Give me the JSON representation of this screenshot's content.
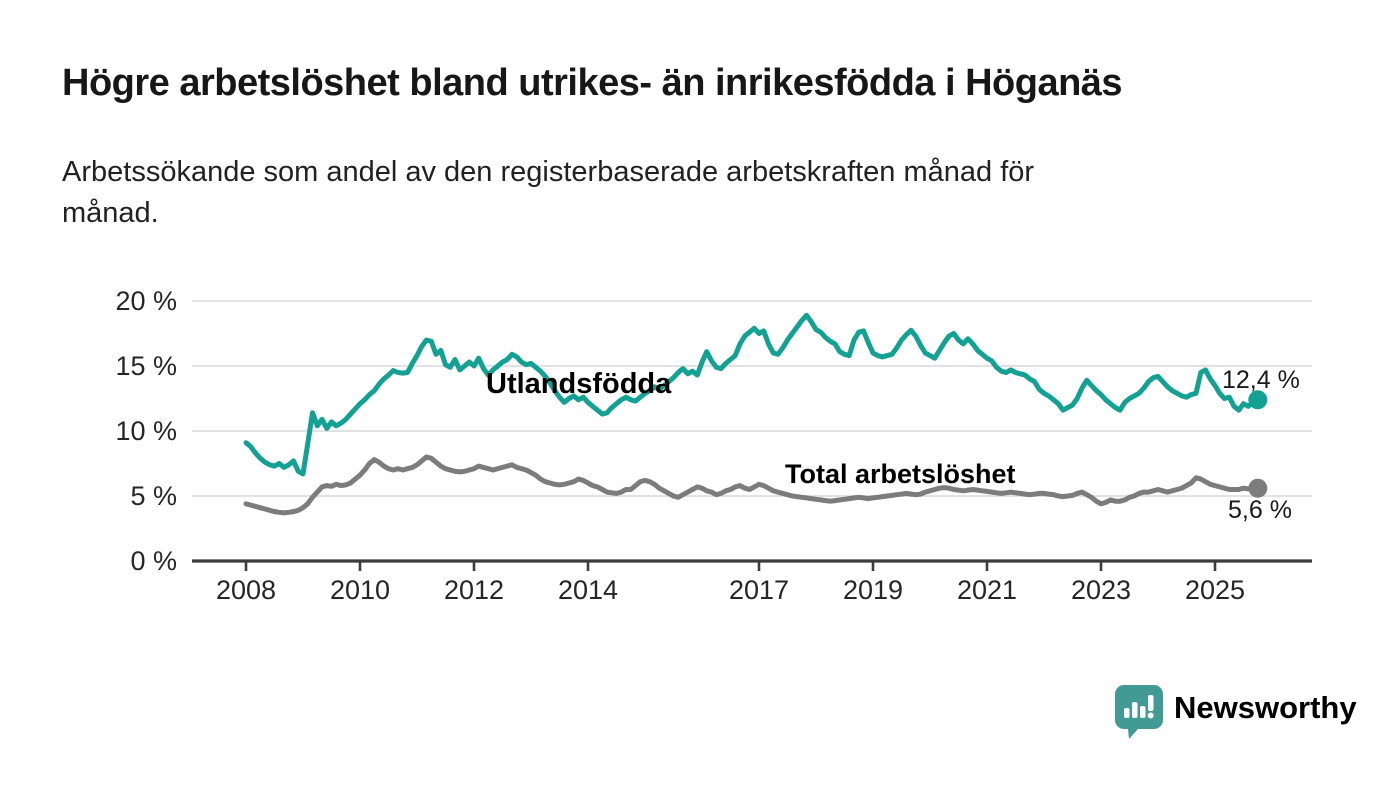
{
  "title": "Högre arbetslöshet bland utrikes- än inrikesfödda i Höganäs",
  "subtitle": {
    "line1": "Arbetssökande som andel av den registerbaserade arbetskraften månad för",
    "line2": "månad."
  },
  "branding": {
    "name": "Newsworthy",
    "logo_icon": "speech-bubble-bar-chart-icon",
    "color": "#3d9a94"
  },
  "chart_data": {
    "type": "line",
    "title": "Högre arbetslöshet bland utrikes- än inrikesfödda i Höganäs",
    "xlabel": "",
    "ylabel": "",
    "grid": "horizontal-only",
    "legend_position": "inline-labels-on-lines",
    "x_axis": {
      "unit": "year (monthly data)",
      "range_years": [
        2008.0,
        2025.75
      ],
      "ticks": [
        {
          "label": "2008",
          "year": 2008
        },
        {
          "label": "2010",
          "year": 2010
        },
        {
          "label": "2012",
          "year": 2012
        },
        {
          "label": "2014",
          "year": 2014
        },
        {
          "label": "2017",
          "year": 2017
        },
        {
          "label": "2019",
          "year": 2019
        },
        {
          "label": "2021",
          "year": 2021
        },
        {
          "label": "2023",
          "year": 2023
        },
        {
          "label": "2025",
          "year": 2025
        }
      ]
    },
    "y_axis": {
      "unit": "percent",
      "ylim": [
        0,
        21.5
      ],
      "ticks": [
        {
          "label": "0 %",
          "value": 0
        },
        {
          "label": "5 %",
          "value": 5
        },
        {
          "label": "10 %",
          "value": 10
        },
        {
          "label": "15 %",
          "value": 15
        },
        {
          "label": "20 %",
          "value": 20
        }
      ]
    },
    "series": [
      {
        "name": "Utlandsfödda",
        "color": "#12a192",
        "end_label": "12,4 %",
        "end_value": 12.4,
        "start_year": 2008.0,
        "step_months": 1,
        "values": [
          9.1,
          8.8,
          8.3,
          7.9,
          7.6,
          7.4,
          7.3,
          7.5,
          7.2,
          7.4,
          7.7,
          6.9,
          6.7,
          9.0,
          11.4,
          10.4,
          10.9,
          10.2,
          10.7,
          10.4,
          10.6,
          10.9,
          11.3,
          11.7,
          12.1,
          12.4,
          12.8,
          13.1,
          13.6,
          14.0,
          14.3,
          14.65,
          14.5,
          14.45,
          14.5,
          15.2,
          15.8,
          16.5,
          17.0,
          16.9,
          15.9,
          16.2,
          15.1,
          14.9,
          15.5,
          14.7,
          15.0,
          15.3,
          15.0,
          15.6,
          14.8,
          14.3,
          14.7,
          15.0,
          15.3,
          15.5,
          15.9,
          15.7,
          15.3,
          15.1,
          15.2,
          14.9,
          14.6,
          14.2,
          13.7,
          13.1,
          12.6,
          12.2,
          12.5,
          12.7,
          12.4,
          12.6,
          12.2,
          11.9,
          11.6,
          11.3,
          11.4,
          11.8,
          12.1,
          12.4,
          12.6,
          12.4,
          12.3,
          12.6,
          12.9,
          13.1,
          13.4,
          13.2,
          13.5,
          13.8,
          14.1,
          14.5,
          14.8,
          14.4,
          14.6,
          14.3,
          15.3,
          16.1,
          15.4,
          14.9,
          14.8,
          15.2,
          15.5,
          15.8,
          16.7,
          17.3,
          17.6,
          17.9,
          17.5,
          17.7,
          16.7,
          16.0,
          15.9,
          16.4,
          17.0,
          17.5,
          18.0,
          18.5,
          18.9,
          18.4,
          17.8,
          17.6,
          17.2,
          16.9,
          16.7,
          16.1,
          15.9,
          15.8,
          17.0,
          17.6,
          17.7,
          16.8,
          16.0,
          15.8,
          15.7,
          15.8,
          15.9,
          16.4,
          17.0,
          17.4,
          17.75,
          17.3,
          16.6,
          16.0,
          15.8,
          15.6,
          16.2,
          16.8,
          17.3,
          17.5,
          17.0,
          16.7,
          17.1,
          16.7,
          16.2,
          15.9,
          15.6,
          15.4,
          14.9,
          14.6,
          14.5,
          14.7,
          14.5,
          14.4,
          14.3,
          14.0,
          13.8,
          13.2,
          12.9,
          12.7,
          12.4,
          12.1,
          11.6,
          11.8,
          12.0,
          12.5,
          13.3,
          13.9,
          13.5,
          13.1,
          12.8,
          12.4,
          12.1,
          11.8,
          11.6,
          12.2,
          12.5,
          12.7,
          12.9,
          13.3,
          13.8,
          14.1,
          14.2,
          13.8,
          13.4,
          13.1,
          12.9,
          12.7,
          12.6,
          12.8,
          12.9,
          14.5,
          14.7,
          14.0,
          13.5,
          12.9,
          12.5,
          12.6,
          11.9,
          11.6,
          12.1,
          11.9,
          12.2,
          12.4
        ]
      },
      {
        "name": "Total arbetslöshet",
        "color": "#7c7c7c",
        "end_label": "5,6 %",
        "end_value": 5.6,
        "start_year": 2008.0,
        "step_months": 1,
        "values": [
          4.4,
          4.3,
          4.2,
          4.1,
          4.0,
          3.9,
          3.8,
          3.75,
          3.7,
          3.75,
          3.8,
          3.9,
          4.1,
          4.4,
          4.9,
          5.3,
          5.7,
          5.8,
          5.75,
          5.9,
          5.8,
          5.85,
          6.0,
          6.3,
          6.6,
          7.0,
          7.5,
          7.8,
          7.6,
          7.3,
          7.1,
          7.0,
          7.1,
          7.0,
          7.1,
          7.2,
          7.4,
          7.7,
          8.0,
          7.9,
          7.6,
          7.3,
          7.1,
          7.0,
          6.9,
          6.85,
          6.9,
          7.0,
          7.1,
          7.3,
          7.2,
          7.1,
          7.0,
          7.1,
          7.2,
          7.3,
          7.4,
          7.2,
          7.1,
          7.0,
          6.8,
          6.6,
          6.3,
          6.1,
          6.0,
          5.9,
          5.85,
          5.9,
          6.0,
          6.1,
          6.3,
          6.2,
          6.0,
          5.8,
          5.7,
          5.5,
          5.3,
          5.25,
          5.2,
          5.3,
          5.5,
          5.5,
          5.8,
          6.1,
          6.2,
          6.1,
          5.9,
          5.6,
          5.4,
          5.2,
          5.0,
          4.9,
          5.1,
          5.3,
          5.5,
          5.7,
          5.6,
          5.4,
          5.3,
          5.1,
          5.2,
          5.4,
          5.5,
          5.7,
          5.8,
          5.6,
          5.5,
          5.7,
          5.9,
          5.8,
          5.6,
          5.4,
          5.3,
          5.2,
          5.1,
          5.0,
          4.95,
          4.9,
          4.85,
          4.8,
          4.75,
          4.7,
          4.65,
          4.6,
          4.65,
          4.7,
          4.75,
          4.8,
          4.85,
          4.9,
          4.85,
          4.8,
          4.85,
          4.9,
          4.95,
          5.0,
          5.05,
          5.1,
          5.15,
          5.2,
          5.15,
          5.1,
          5.15,
          5.3,
          5.4,
          5.5,
          5.6,
          5.65,
          5.6,
          5.5,
          5.45,
          5.4,
          5.45,
          5.5,
          5.45,
          5.4,
          5.35,
          5.3,
          5.25,
          5.2,
          5.25,
          5.3,
          5.25,
          5.2,
          5.15,
          5.1,
          5.15,
          5.2,
          5.2,
          5.15,
          5.1,
          5.0,
          4.95,
          5.0,
          5.05,
          5.2,
          5.3,
          5.1,
          4.9,
          4.6,
          4.4,
          4.5,
          4.7,
          4.6,
          4.6,
          4.7,
          4.9,
          5.0,
          5.2,
          5.3,
          5.3,
          5.4,
          5.5,
          5.4,
          5.3,
          5.4,
          5.5,
          5.6,
          5.8,
          6.0,
          6.4,
          6.3,
          6.1,
          5.9,
          5.8,
          5.7,
          5.6,
          5.5,
          5.5,
          5.5,
          5.6,
          5.55,
          5.6,
          5.6
        ]
      }
    ]
  }
}
